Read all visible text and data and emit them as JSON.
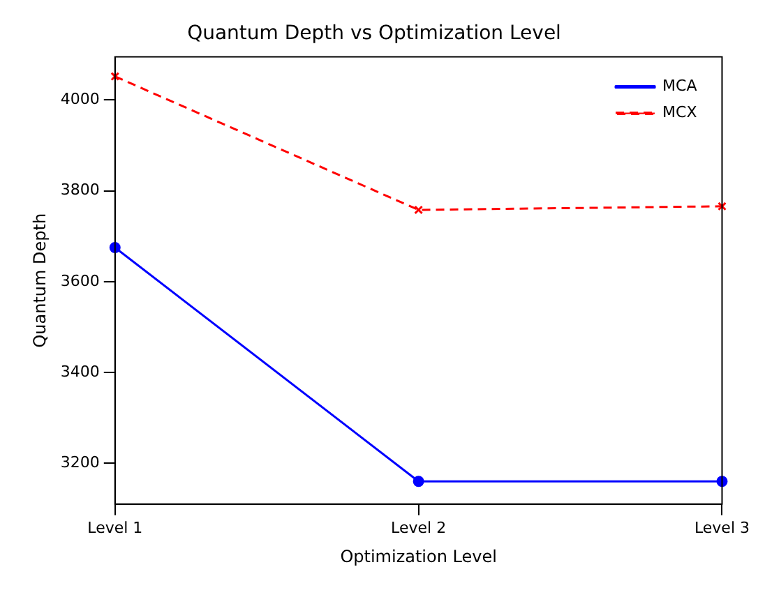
{
  "chart_data": {
    "type": "line",
    "title": "Quantum Depth vs Optimization Level",
    "xlabel": "Optimization Level",
    "ylabel": "Quantum Depth",
    "categories": [
      "Level 1",
      "Level 2",
      "Level 3"
    ],
    "series": [
      {
        "name": "MCA",
        "color": "#0000ff",
        "values": [
          3675,
          3160,
          3160
        ],
        "marker": "circle",
        "line_style": "solid"
      },
      {
        "name": "MCX",
        "color": "#ff0000",
        "values": [
          4052,
          3758,
          3766
        ],
        "marker": "cross",
        "line_style": "dashed"
      }
    ],
    "ylim": [
      3110,
      4095
    ],
    "yticks": [
      3200,
      3400,
      3600,
      3800,
      4000
    ],
    "grid": false,
    "legend": "top right"
  }
}
